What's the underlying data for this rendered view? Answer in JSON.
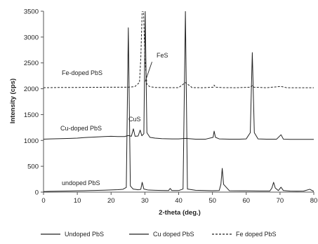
{
  "chart_data": {
    "type": "line",
    "title": "",
    "xlabel": "2-theta (deg.)",
    "ylabel": "Intensity (cps)",
    "xlim": [
      0,
      80
    ],
    "ylim": [
      0,
      3500
    ],
    "xticks": [
      "0",
      "10",
      "20",
      "30",
      "40",
      "50",
      "60",
      "70",
      "80"
    ],
    "yticks": [
      "0",
      "500",
      "1000",
      "1500",
      "2000",
      "2500",
      "3000",
      "3500"
    ],
    "grid": false,
    "legend_position": "bottom",
    "series": [
      {
        "name": "Undoped PbS",
        "label": "undoped PbS",
        "style": "solid",
        "color": "#222222",
        "points": [
          [
            0,
            10
          ],
          [
            2,
            15
          ],
          [
            5,
            18
          ],
          [
            8,
            22
          ],
          [
            10,
            25
          ],
          [
            12,
            28
          ],
          [
            15,
            33
          ],
          [
            18,
            38
          ],
          [
            20,
            42
          ],
          [
            22,
            48
          ],
          [
            23.5,
            55
          ],
          [
            24.5,
            90
          ],
          [
            25.1,
            3180
          ],
          [
            25.7,
            120
          ],
          [
            26.5,
            60
          ],
          [
            28,
            45
          ],
          [
            28.8,
            55
          ],
          [
            29.2,
            190
          ],
          [
            29.7,
            60
          ],
          [
            31,
            40
          ],
          [
            33,
            35
          ],
          [
            35,
            32
          ],
          [
            37,
            30
          ],
          [
            37.5,
            70
          ],
          [
            38,
            30
          ],
          [
            40,
            30
          ],
          [
            41.3,
            60
          ],
          [
            42.0,
            3500
          ],
          [
            42.6,
            60
          ],
          [
            45,
            35
          ],
          [
            48,
            30
          ],
          [
            50,
            28
          ],
          [
            52,
            30
          ],
          [
            52.5,
            150
          ],
          [
            52.9,
            460
          ],
          [
            53.3,
            150
          ],
          [
            55,
            28
          ],
          [
            58,
            25
          ],
          [
            60,
            25
          ],
          [
            64,
            22
          ],
          [
            67,
            22
          ],
          [
            67.6,
            80
          ],
          [
            68.1,
            190
          ],
          [
            68.6,
            80
          ],
          [
            69.5,
            30
          ],
          [
            70.3,
            95
          ],
          [
            71,
            30
          ],
          [
            73,
            20
          ],
          [
            75,
            18
          ],
          [
            77,
            20
          ],
          [
            78.8,
            55
          ],
          [
            80,
            15
          ]
        ]
      },
      {
        "name": "Cu doped PbS",
        "label": "Cu-doped PbS",
        "style": "solid",
        "color": "#222222",
        "points": [
          [
            0,
            1025
          ],
          [
            2,
            1030
          ],
          [
            5,
            1035
          ],
          [
            8,
            1040
          ],
          [
            10,
            1045
          ],
          [
            12,
            1055
          ],
          [
            15,
            1065
          ],
          [
            18,
            1075
          ],
          [
            20,
            1080
          ],
          [
            22,
            1075
          ],
          [
            24,
            1075
          ],
          [
            25.1,
            1095
          ],
          [
            26,
            1080
          ],
          [
            26.6,
            1225
          ],
          [
            27.1,
            1080
          ],
          [
            28,
            1085
          ],
          [
            28.6,
            1200
          ],
          [
            29.1,
            1090
          ],
          [
            29.7,
            1130
          ],
          [
            30.1,
            3500
          ],
          [
            30.6,
            1150
          ],
          [
            31.5,
            1060
          ],
          [
            33,
            1045
          ],
          [
            35,
            1035
          ],
          [
            38,
            1030
          ],
          [
            40,
            1030
          ],
          [
            42.0,
            1040
          ],
          [
            45,
            1025
          ],
          [
            48,
            1025
          ],
          [
            50.2,
            1060
          ],
          [
            50.5,
            1180
          ],
          [
            50.9,
            1060
          ],
          [
            52,
            1030
          ],
          [
            55,
            1025
          ],
          [
            58,
            1025
          ],
          [
            60,
            1030
          ],
          [
            61.2,
            1150
          ],
          [
            61.8,
            2700
          ],
          [
            62.4,
            1150
          ],
          [
            63.5,
            1030
          ],
          [
            66,
            1025
          ],
          [
            69,
            1025
          ],
          [
            70.3,
            1110
          ],
          [
            71,
            1025
          ],
          [
            73,
            1020
          ],
          [
            75,
            1020
          ],
          [
            78,
            1020
          ],
          [
            80,
            1020
          ]
        ]
      },
      {
        "name": "Fe doped PbS",
        "label": "Fe-doped PbS",
        "style": "dashed",
        "color": "#222222",
        "points": [
          [
            0,
            2020
          ],
          [
            5,
            2025
          ],
          [
            10,
            2025
          ],
          [
            15,
            2028
          ],
          [
            20,
            2030
          ],
          [
            25,
            2030
          ],
          [
            27,
            2040
          ],
          [
            28.4,
            2120
          ],
          [
            28.8,
            2600
          ],
          [
            29.2,
            3500
          ],
          [
            29.6,
            3500
          ],
          [
            30.0,
            2600
          ],
          [
            30.6,
            2080
          ],
          [
            31.5,
            2040
          ],
          [
            33,
            2025
          ],
          [
            36,
            2022
          ],
          [
            40,
            2022
          ],
          [
            42.0,
            2120
          ],
          [
            44,
            2022
          ],
          [
            47,
            2020
          ],
          [
            50.2,
            2030
          ],
          [
            50.5,
            2070
          ],
          [
            50.9,
            2030
          ],
          [
            53,
            2022
          ],
          [
            57,
            2020
          ],
          [
            61.3,
            2030
          ],
          [
            61.8,
            2060
          ],
          [
            62.3,
            2030
          ],
          [
            66,
            2020
          ],
          [
            70.3,
            2045
          ],
          [
            72,
            2020
          ],
          [
            76,
            2020
          ],
          [
            80,
            2020
          ]
        ]
      }
    ],
    "annotations": [
      {
        "text": "FeS",
        "x": 30.0,
        "y": 2130,
        "arrow_from": [
          32.1,
          2520
        ],
        "arrow_to": [
          30.1,
          2140
        ]
      },
      {
        "text": "CuS",
        "x": 26.6,
        "y": 1228
      }
    ]
  }
}
